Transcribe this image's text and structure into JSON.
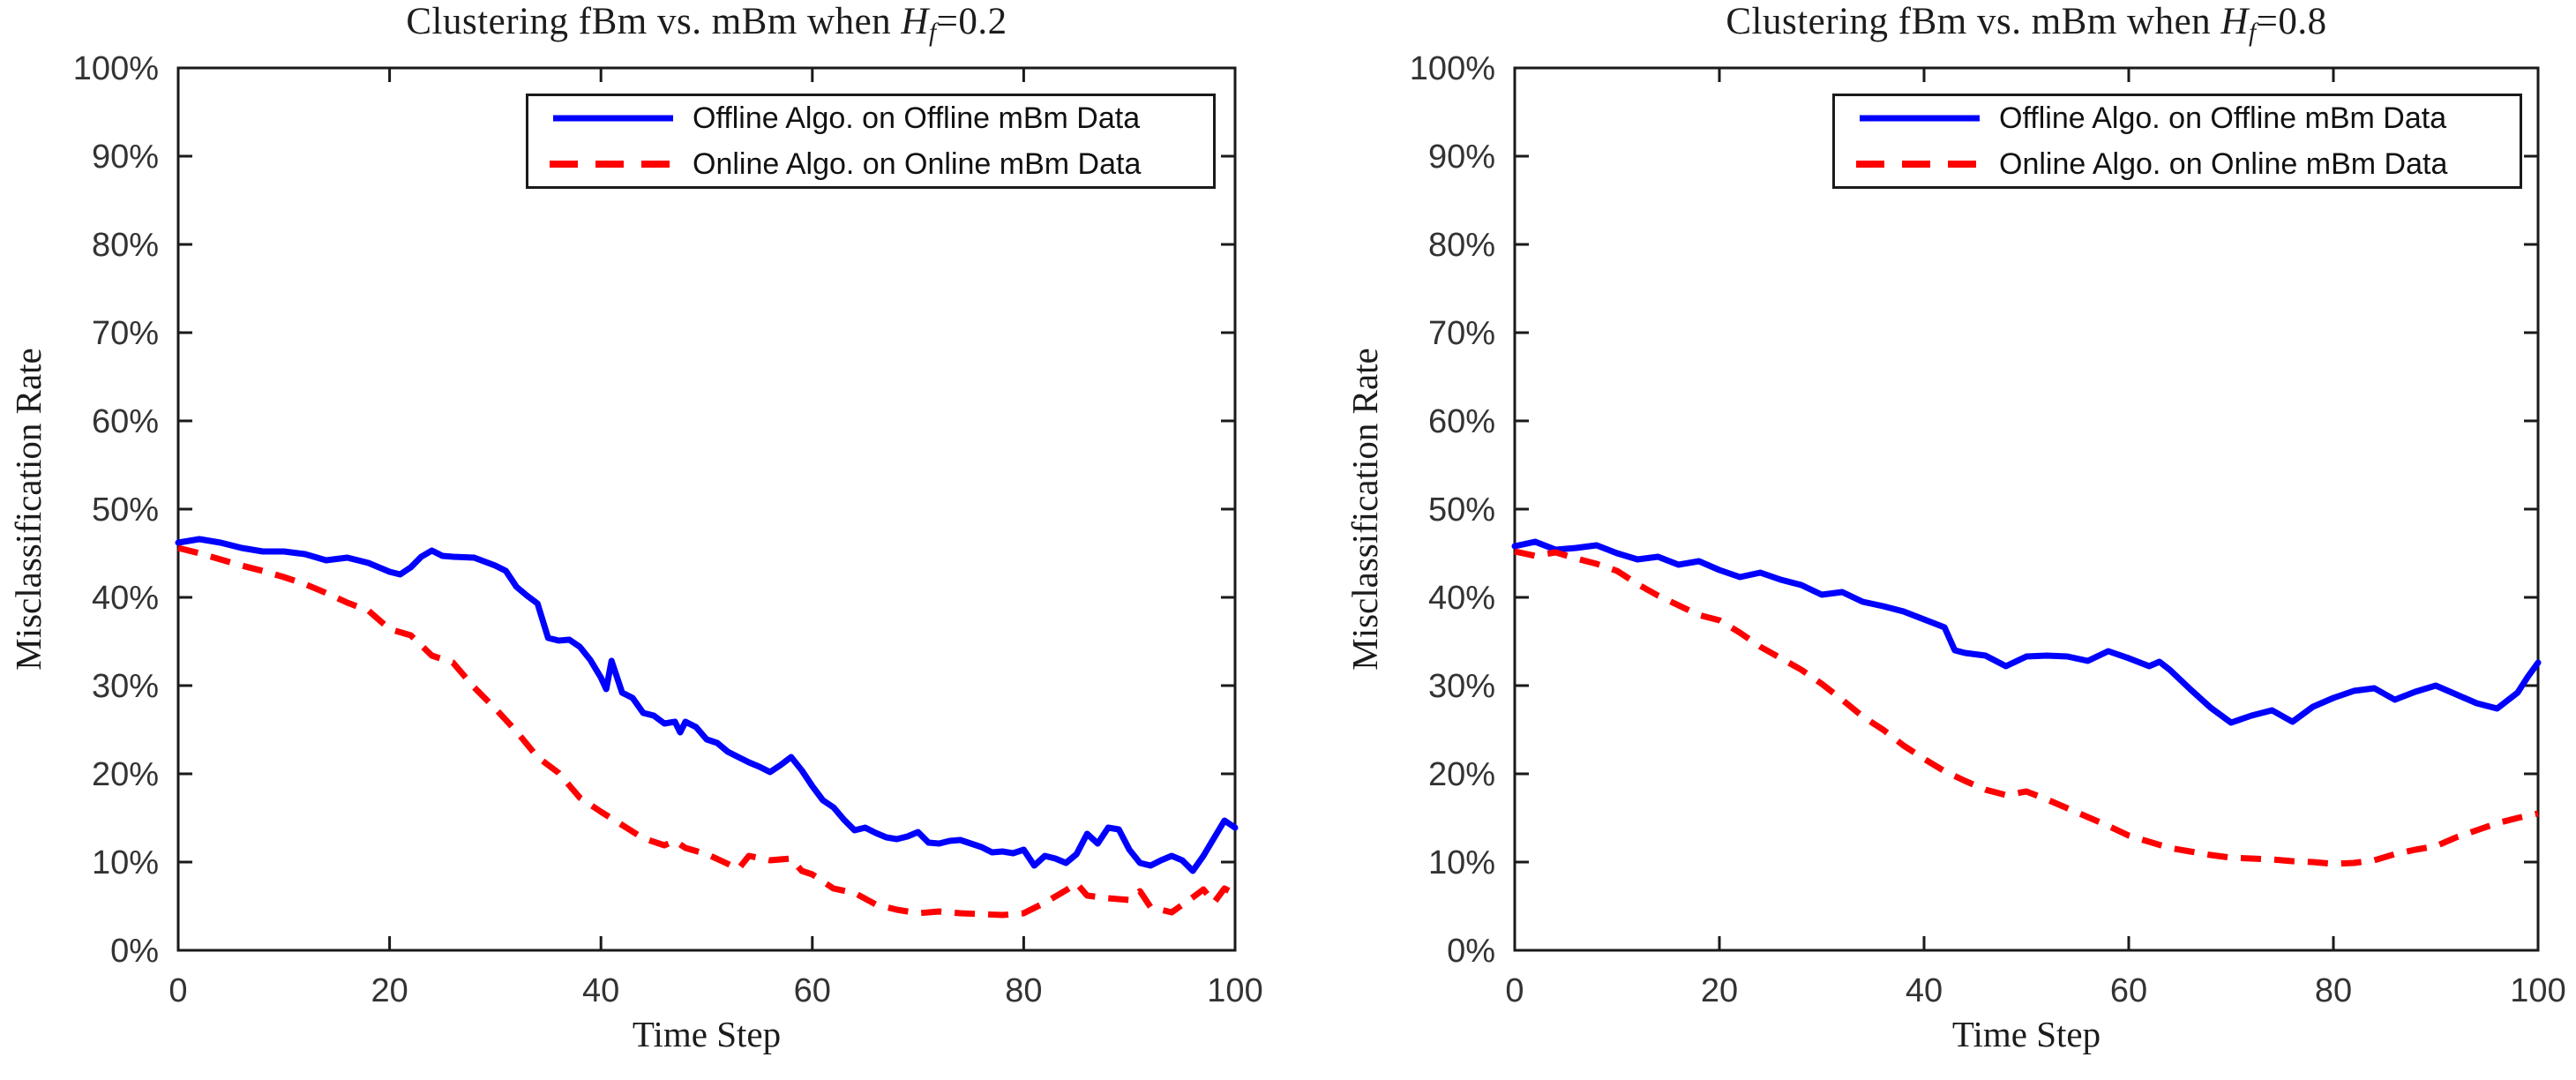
{
  "figure": {
    "background": "#ffffff",
    "accent_blue": "#0000ff",
    "accent_red": "#ff0000"
  },
  "chart_data": [
    {
      "type": "line",
      "title": "Clustering fBm vs. mBm when Hf=0.2",
      "title_parts": {
        "prefix": "Clustering fBm vs. mBm when ",
        "h": "H",
        "sub": "f",
        "suffix": "=0.2"
      },
      "xlabel": "Time Step",
      "ylabel": "Misclassification Rate",
      "xlim": [
        0,
        100
      ],
      "ylim": [
        0,
        100
      ],
      "grid": false,
      "legend_position": "top-right",
      "x_ticks": [
        0,
        20,
        40,
        60,
        80,
        100
      ],
      "x_tick_labels": [
        "0",
        "20",
        "40",
        "60",
        "80",
        "100"
      ],
      "y_ticks": [
        0,
        10,
        20,
        30,
        40,
        50,
        60,
        70,
        80,
        90,
        100
      ],
      "y_tick_labels": [
        "0%",
        "10%",
        "20%",
        "30%",
        "40%",
        "50%",
        "60%",
        "70%",
        "80%",
        "90%",
        "100%"
      ],
      "series": [
        {
          "name": "Offline Algo. on Offline mBm Data",
          "color": "#0000ff",
          "style": "solid",
          "points": [
            [
              0,
              46.2
            ],
            [
              2,
              46.6
            ],
            [
              4,
              46.2
            ],
            [
              6,
              45.6
            ],
            [
              8,
              45.2
            ],
            [
              10,
              45.2
            ],
            [
              12,
              44.9
            ],
            [
              14,
              44.2
            ],
            [
              16,
              44.5
            ],
            [
              18,
              43.9
            ],
            [
              20,
              42.9
            ],
            [
              21,
              42.6
            ],
            [
              22,
              43.4
            ],
            [
              23,
              44.6
            ],
            [
              24,
              45.3
            ],
            [
              25,
              44.7
            ],
            [
              26,
              44.6
            ],
            [
              28,
              44.5
            ],
            [
              30,
              43.6
            ],
            [
              31,
              43.0
            ],
            [
              32,
              41.2
            ],
            [
              33,
              40.2
            ],
            [
              34,
              39.3
            ],
            [
              35,
              35.4
            ],
            [
              36,
              35.1
            ],
            [
              37,
              35.2
            ],
            [
              38,
              34.4
            ],
            [
              39,
              32.9
            ],
            [
              40,
              30.9
            ],
            [
              40.5,
              29.6
            ],
            [
              41,
              32.8
            ],
            [
              42,
              29.2
            ],
            [
              43,
              28.6
            ],
            [
              44,
              26.9
            ],
            [
              45,
              26.6
            ],
            [
              46,
              25.7
            ],
            [
              47,
              25.9
            ],
            [
              47.5,
              24.7
            ],
            [
              48,
              25.9
            ],
            [
              49,
              25.3
            ],
            [
              50,
              23.9
            ],
            [
              51,
              23.5
            ],
            [
              52,
              22.5
            ],
            [
              53,
              21.9
            ],
            [
              54,
              21.3
            ],
            [
              55,
              20.8
            ],
            [
              56,
              20.2
            ],
            [
              57,
              21.0
            ],
            [
              58,
              21.9
            ],
            [
              59,
              20.4
            ],
            [
              60,
              18.6
            ],
            [
              61,
              17.0
            ],
            [
              62,
              16.2
            ],
            [
              63,
              14.8
            ],
            [
              64,
              13.6
            ],
            [
              65,
              13.9
            ],
            [
              66,
              13.3
            ],
            [
              67,
              12.8
            ],
            [
              68,
              12.6
            ],
            [
              69,
              12.9
            ],
            [
              70,
              13.4
            ],
            [
              71,
              12.2
            ],
            [
              72,
              12.1
            ],
            [
              73,
              12.4
            ],
            [
              74,
              12.5
            ],
            [
              75,
              12.1
            ],
            [
              76,
              11.7
            ],
            [
              77,
              11.1
            ],
            [
              78,
              11.2
            ],
            [
              79,
              11.0
            ],
            [
              80,
              11.4
            ],
            [
              81,
              9.6
            ],
            [
              82,
              10.7
            ],
            [
              83,
              10.4
            ],
            [
              84,
              9.9
            ],
            [
              85,
              10.9
            ],
            [
              86,
              13.2
            ],
            [
              87,
              12.1
            ],
            [
              88,
              13.9
            ],
            [
              89,
              13.7
            ],
            [
              90,
              11.4
            ],
            [
              91,
              9.9
            ],
            [
              92,
              9.6
            ],
            [
              93,
              10.2
            ],
            [
              94,
              10.7
            ],
            [
              95,
              10.2
            ],
            [
              96,
              9.0
            ],
            [
              97,
              10.7
            ],
            [
              98,
              12.7
            ],
            [
              99,
              14.7
            ],
            [
              100,
              13.9
            ]
          ]
        },
        {
          "name": "Online Algo. on Online mBm Data",
          "color": "#ff0000",
          "style": "dashed",
          "points": [
            [
              0,
              45.6
            ],
            [
              2,
              45.0
            ],
            [
              4,
              44.3
            ],
            [
              6,
              43.6
            ],
            [
              8,
              43.0
            ],
            [
              10,
              42.3
            ],
            [
              12,
              41.5
            ],
            [
              14,
              40.5
            ],
            [
              16,
              39.4
            ],
            [
              18,
              38.5
            ],
            [
              20,
              36.4
            ],
            [
              22,
              35.7
            ],
            [
              24,
              33.4
            ],
            [
              26,
              32.6
            ],
            [
              28,
              29.8
            ],
            [
              30,
              27.4
            ],
            [
              32,
              24.8
            ],
            [
              34,
              21.9
            ],
            [
              36,
              20.1
            ],
            [
              38,
              17.3
            ],
            [
              40,
              15.7
            ],
            [
              42,
              14.2
            ],
            [
              44,
              12.7
            ],
            [
              46,
              11.9
            ],
            [
              47,
              12.4
            ],
            [
              48,
              11.6
            ],
            [
              50,
              10.9
            ],
            [
              52,
              9.8
            ],
            [
              53,
              9.2
            ],
            [
              54,
              10.7
            ],
            [
              56,
              10.2
            ],
            [
              58,
              10.4
            ],
            [
              59,
              9.0
            ],
            [
              60,
              8.6
            ],
            [
              62,
              7.0
            ],
            [
              64,
              6.5
            ],
            [
              66,
              5.2
            ],
            [
              68,
              4.6
            ],
            [
              70,
              4.2
            ],
            [
              72,
              4.4
            ],
            [
              74,
              4.2
            ],
            [
              76,
              4.1
            ],
            [
              78,
              4.0
            ],
            [
              80,
              4.2
            ],
            [
              82,
              5.4
            ],
            [
              84,
              6.8
            ],
            [
              85,
              7.6
            ],
            [
              86,
              6.2
            ],
            [
              88,
              5.9
            ],
            [
              90,
              5.7
            ],
            [
              91,
              6.7
            ],
            [
              92,
              4.9
            ],
            [
              94,
              4.3
            ],
            [
              96,
              6.0
            ],
            [
              97,
              6.9
            ],
            [
              98,
              5.4
            ],
            [
              99,
              7.0
            ],
            [
              100,
              6.4
            ]
          ]
        }
      ]
    },
    {
      "type": "line",
      "title": "Clustering fBm vs. mBm when Hf=0.8",
      "title_parts": {
        "prefix": "Clustering fBm vs. mBm when ",
        "h": "H",
        "sub": "f",
        "suffix": "=0.8"
      },
      "xlabel": "Time Step",
      "ylabel": "Misclassification Rate",
      "xlim": [
        0,
        100
      ],
      "ylim": [
        0,
        100
      ],
      "grid": false,
      "legend_position": "top-right",
      "x_ticks": [
        0,
        20,
        40,
        60,
        80,
        100
      ],
      "x_tick_labels": [
        "0",
        "20",
        "40",
        "60",
        "80",
        "100"
      ],
      "y_ticks": [
        0,
        10,
        20,
        30,
        40,
        50,
        60,
        70,
        80,
        90,
        100
      ],
      "y_tick_labels": [
        "0%",
        "10%",
        "20%",
        "30%",
        "40%",
        "50%",
        "60%",
        "70%",
        "80%",
        "90%",
        "100%"
      ],
      "series": [
        {
          "name": "Offline Algo. on Offline mBm Data",
          "color": "#0000ff",
          "style": "solid",
          "points": [
            [
              0,
              45.8
            ],
            [
              2,
              46.3
            ],
            [
              4,
              45.4
            ],
            [
              6,
              45.6
            ],
            [
              8,
              45.9
            ],
            [
              10,
              45.0
            ],
            [
              12,
              44.3
            ],
            [
              14,
              44.6
            ],
            [
              16,
              43.7
            ],
            [
              18,
              44.1
            ],
            [
              20,
              43.1
            ],
            [
              22,
              42.3
            ],
            [
              24,
              42.8
            ],
            [
              26,
              42.0
            ],
            [
              28,
              41.4
            ],
            [
              30,
              40.3
            ],
            [
              32,
              40.6
            ],
            [
              34,
              39.5
            ],
            [
              36,
              39.0
            ],
            [
              38,
              38.4
            ],
            [
              40,
              37.5
            ],
            [
              42,
              36.6
            ],
            [
              43,
              34.0
            ],
            [
              44,
              33.7
            ],
            [
              46,
              33.4
            ],
            [
              48,
              32.2
            ],
            [
              50,
              33.3
            ],
            [
              52,
              33.4
            ],
            [
              54,
              33.3
            ],
            [
              56,
              32.8
            ],
            [
              58,
              33.9
            ],
            [
              60,
              33.1
            ],
            [
              62,
              32.2
            ],
            [
              63,
              32.7
            ],
            [
              64,
              31.8
            ],
            [
              66,
              29.6
            ],
            [
              68,
              27.5
            ],
            [
              70,
              25.8
            ],
            [
              72,
              26.6
            ],
            [
              74,
              27.2
            ],
            [
              76,
              25.9
            ],
            [
              78,
              27.6
            ],
            [
              80,
              28.6
            ],
            [
              82,
              29.4
            ],
            [
              84,
              29.7
            ],
            [
              86,
              28.4
            ],
            [
              88,
              29.3
            ],
            [
              90,
              30.0
            ],
            [
              92,
              29.0
            ],
            [
              94,
              28.0
            ],
            [
              96,
              27.4
            ],
            [
              98,
              29.2
            ],
            [
              99,
              31.0
            ],
            [
              100,
              32.6
            ]
          ]
        },
        {
          "name": "Online Algo. on Online mBm Data",
          "color": "#ff0000",
          "style": "dashed",
          "points": [
            [
              0,
              45.2
            ],
            [
              2,
              44.7
            ],
            [
              4,
              45.1
            ],
            [
              6,
              44.4
            ],
            [
              8,
              43.8
            ],
            [
              10,
              43.0
            ],
            [
              12,
              41.5
            ],
            [
              14,
              40.2
            ],
            [
              16,
              39.1
            ],
            [
              18,
              38.0
            ],
            [
              20,
              37.4
            ],
            [
              22,
              36.0
            ],
            [
              24,
              34.4
            ],
            [
              26,
              33.1
            ],
            [
              28,
              31.8
            ],
            [
              30,
              30.2
            ],
            [
              32,
              28.4
            ],
            [
              34,
              26.5
            ],
            [
              36,
              25.0
            ],
            [
              38,
              23.2
            ],
            [
              40,
              21.7
            ],
            [
              42,
              20.3
            ],
            [
              44,
              19.2
            ],
            [
              46,
              18.2
            ],
            [
              48,
              17.6
            ],
            [
              50,
              18.0
            ],
            [
              52,
              17.1
            ],
            [
              54,
              16.1
            ],
            [
              56,
              15.1
            ],
            [
              58,
              14.1
            ],
            [
              60,
              13.0
            ],
            [
              62,
              12.3
            ],
            [
              64,
              11.6
            ],
            [
              66,
              11.2
            ],
            [
              68,
              10.8
            ],
            [
              70,
              10.5
            ],
            [
              72,
              10.4
            ],
            [
              74,
              10.3
            ],
            [
              76,
              10.1
            ],
            [
              78,
              10.0
            ],
            [
              80,
              9.8
            ],
            [
              82,
              9.9
            ],
            [
              84,
              10.2
            ],
            [
              86,
              10.9
            ],
            [
              88,
              11.4
            ],
            [
              90,
              11.8
            ],
            [
              92,
              12.8
            ],
            [
              94,
              13.6
            ],
            [
              96,
              14.4
            ],
            [
              98,
              15.0
            ],
            [
              100,
              15.5
            ]
          ]
        }
      ]
    }
  ]
}
